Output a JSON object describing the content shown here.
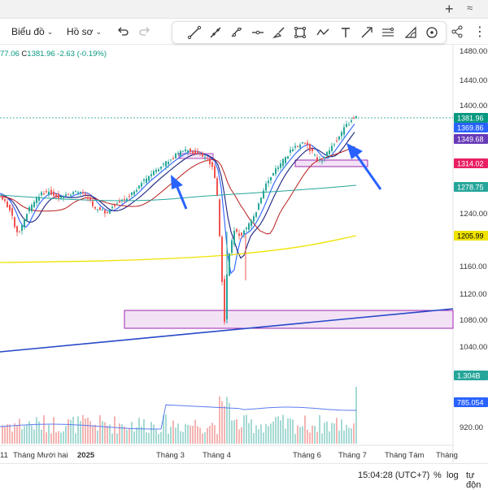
{
  "toolbar": {
    "chart_type_label": "Biểu đồ",
    "profile_label": "Hồ sơ"
  },
  "drawing_tools": [
    "trend-line-icon",
    "ray-icon",
    "extended-line-icon",
    "parallel-channel-icon",
    "horizontal-line-icon",
    "brush-icon",
    "rectangle-icon",
    "path-icon",
    "text-icon",
    "arrow-icon",
    "fib-retracement-icon",
    "arc-icon",
    "circle-icon"
  ],
  "price_info": {
    "prev": "77.06",
    "close_label": "C",
    "close": "1381.96",
    "change": "-2.63",
    "change_pct": "(-0.19%)"
  },
  "price_axis": {
    "ticks": [
      "1480.00",
      "1440.00",
      "1400.00",
      "1240.00",
      "1160.00",
      "1120.00",
      "1080.00",
      "1040.00",
      "920.00"
    ],
    "badges": [
      {
        "text": "1381.96",
        "color": "#089981"
      },
      {
        "text": "1369.86",
        "color": "#2962ff"
      },
      {
        "text": "1349.68",
        "color": "#673ab7"
      },
      {
        "text": "1314.02",
        "color": "#e91e63"
      },
      {
        "text": "1278.75",
        "color": "#26a69a"
      },
      {
        "text": "1205.99",
        "color": "#f0e300"
      },
      {
        "text": "1.304B",
        "color": "#26a69a"
      },
      {
        "text": "785.054",
        "color": "#2962ff"
      }
    ]
  },
  "time_axis": {
    "labels": [
      "11",
      "Tháng Mười hai",
      "2025",
      "Tháng 3",
      "Tháng 4",
      "Tháng 6",
      "Tháng 7",
      "Tháng Tám",
      "Tháng"
    ]
  },
  "status_bar": {
    "time": "15:04:28 (UTC+7)",
    "percent": "%",
    "log": "log",
    "auto": "tự độn"
  },
  "colors": {
    "up": "#26a69a",
    "down": "#ef5350",
    "ma_blue": "#2962ff",
    "ma_navy": "#1a237e",
    "ma_red": "#b71c1c",
    "ma_teal": "#26a69a",
    "ma_yellow": "#f0e300",
    "zone_fill": "#f3e2f6",
    "zone_border": "#9c27b0",
    "arrow": "#2962ff"
  }
}
